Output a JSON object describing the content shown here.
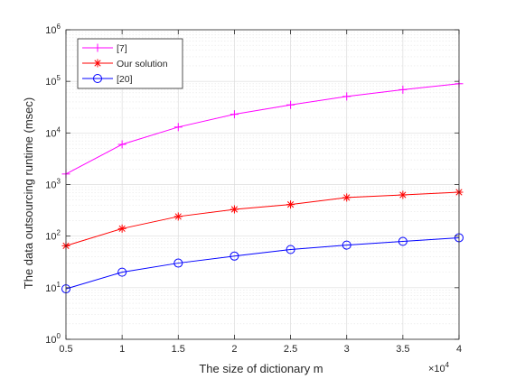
{
  "chart_data": {
    "type": "line",
    "x_multiplier_label": "×10",
    "x_multiplier_exp": "4",
    "xlabel": "The size of dictionary m",
    "ylabel": "The data outsourcing runtime (msec)",
    "x": [
      0.5,
      1,
      1.5,
      2,
      2.5,
      3,
      3.5,
      4
    ],
    "x_tick_labels": [
      "0.5",
      "1",
      "1.5",
      "2",
      "2.5",
      "3",
      "3.5",
      "4"
    ],
    "xlim": [
      0.5,
      4
    ],
    "ylim": [
      1,
      1000000
    ],
    "yscale": "log",
    "y_ticks": [
      {
        "base": "10",
        "exp": "0",
        "value": 1
      },
      {
        "base": "10",
        "exp": "1",
        "value": 10
      },
      {
        "base": "10",
        "exp": "2",
        "value": 100
      },
      {
        "base": "10",
        "exp": "3",
        "value": 1000
      },
      {
        "base": "10",
        "exp": "4",
        "value": 10000
      },
      {
        "base": "10",
        "exp": "5",
        "value": 100000
      },
      {
        "base": "10",
        "exp": "6",
        "value": 1000000
      }
    ],
    "grid": true,
    "legend_position": "top-left",
    "series": [
      {
        "name": "[7]",
        "color": "#ff00ff",
        "marker": "plus",
        "values": [
          1600,
          6000,
          13000,
          23000,
          35000,
          51000,
          69000,
          90000
        ]
      },
      {
        "name": "Our solution",
        "color": "#ff0000",
        "marker": "asterisk",
        "values": [
          65,
          140,
          240,
          330,
          410,
          560,
          630,
          710
        ]
      },
      {
        "name": "[20]",
        "color": "#0000ff",
        "marker": "circle",
        "values": [
          9.5,
          20,
          30,
          41,
          55,
          67,
          79,
          93
        ]
      }
    ]
  }
}
